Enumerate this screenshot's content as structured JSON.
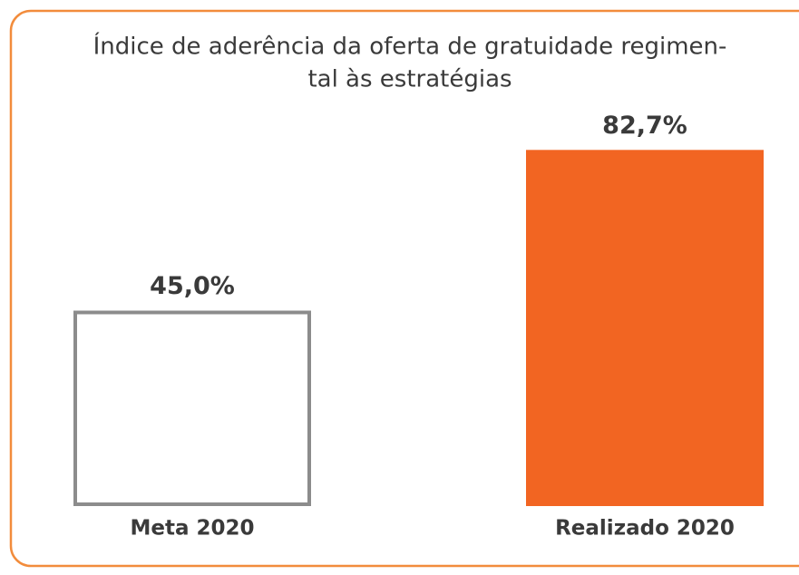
{
  "chart_data": {
    "type": "bar",
    "title": [
      "Índice de aderência da oferta de gratuidade regimen-",
      "tal às estratégias"
    ],
    "categories": [
      "Meta 2020",
      "Realizado 2020"
    ],
    "values": [
      45.0,
      82.7
    ],
    "value_labels": [
      "45,0%",
      "82,7%"
    ],
    "colors": [
      "#ffffff",
      "#f26522"
    ],
    "edgecolors": [
      "#8c8c8c",
      "#f26522"
    ]
  }
}
